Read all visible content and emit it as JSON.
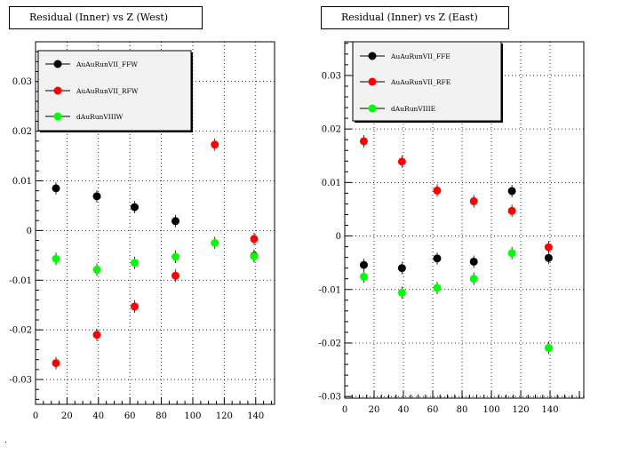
{
  "chart_data": [
    {
      "type": "scatter",
      "title": "Residual (Inner) vs Z (West)",
      "xlabel": "",
      "ylabel": "",
      "xlim": [
        0,
        152
      ],
      "ylim": [
        -0.035,
        0.038
      ],
      "xticks": [
        0,
        20,
        40,
        60,
        80,
        100,
        120,
        140
      ],
      "yticks": [
        -0.03,
        -0.02,
        -0.01,
        0,
        0.01,
        0.02,
        0.03
      ],
      "ytick_labels": [
        "-0.03",
        "-0.02",
        "-0.01",
        "0",
        "0.01",
        "0.02",
        "0.03"
      ],
      "grid": true,
      "legend_position": "top-left",
      "series": [
        {
          "name": "AuAuRunVII_FFW",
          "color": "#000000",
          "x": [
            13,
            39,
            63,
            89,
            114,
            139
          ],
          "y": [
            0.0085,
            0.0069,
            0.0047,
            0.0019,
            null,
            -0.0051
          ]
        },
        {
          "name": "AuAuRunVII_RFW",
          "color": "#ff0000",
          "x": [
            13,
            39,
            63,
            89,
            114,
            139
          ],
          "y": [
            -0.0267,
            -0.021,
            -0.0153,
            -0.0091,
            0.0173,
            -0.0017
          ]
        },
        {
          "name": "dAuRunVIIIW",
          "color": "#00ff00",
          "x": [
            13,
            39,
            63,
            89,
            114,
            139
          ],
          "y": [
            -0.0057,
            -0.0079,
            -0.0065,
            -0.0053,
            -0.0025,
            -0.0052
          ]
        }
      ]
    },
    {
      "type": "scatter",
      "title": "Residual (Inner) vs Z (East)",
      "xlabel": "",
      "ylabel": "",
      "xlim": [
        0,
        163
      ],
      "ylim": [
        -0.0303,
        0.0363
      ],
      "xticks": [
        0,
        20,
        40,
        60,
        80,
        100,
        120,
        140
      ],
      "yticks": [
        -0.03,
        -0.02,
        -0.01,
        0,
        0.01,
        0.02,
        0.03
      ],
      "ytick_labels": [
        "-0.03",
        "-0.02",
        "-0.01",
        "0",
        "0.01",
        "0.02",
        "0.03"
      ],
      "grid": true,
      "legend_position": "top-left",
      "series": [
        {
          "name": "AuAuRunVII_FFE",
          "color": "#000000",
          "x": [
            13,
            39,
            63,
            88,
            114,
            139
          ],
          "y": [
            -0.0054,
            -0.006,
            -0.0042,
            -0.0048,
            0.0084,
            -0.0041
          ]
        },
        {
          "name": "AuAuRunVII_RFE",
          "color": "#ff0000",
          "x": [
            13,
            39,
            63,
            88,
            114,
            139
          ],
          "y": [
            0.0177,
            0.0139,
            0.0085,
            0.0065,
            0.0047,
            -0.0021
          ]
        },
        {
          "name": "dAuRunVIIIE",
          "color": "#00ff00",
          "x": [
            13,
            39,
            63,
            88,
            114,
            139
          ],
          "y": [
            -0.0076,
            -0.0106,
            -0.0097,
            -0.008,
            -0.0032,
            -0.0209
          ]
        }
      ]
    }
  ]
}
